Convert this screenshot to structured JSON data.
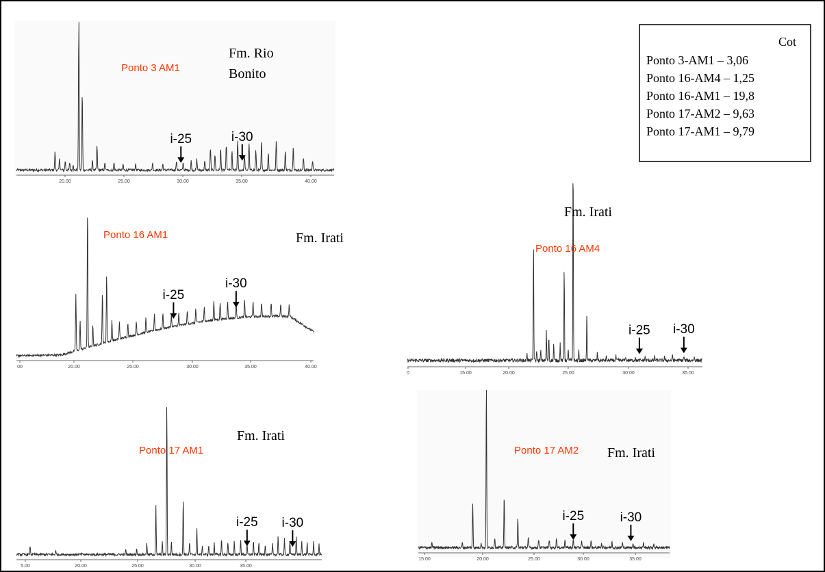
{
  "legend": {
    "title": "Cot",
    "rows": [
      "Ponto 3-AM1  – 3,06",
      "Ponto 16-AM4 – 1,25",
      "Ponto 16-AM1 – 19,8",
      "Ponto 17-AM2 – 9,63",
      "Ponto 17-AM1 – 9,79"
    ]
  },
  "colors": {
    "sample_label": "#ff3300",
    "trace": "#333333",
    "axis": "#666666",
    "text": "#000000"
  },
  "arrow_label_25": "i-25",
  "arrow_label_30": "i-30",
  "chart_data": [
    {
      "type": "line",
      "sample": "Ponto 3 AM1",
      "formation": "Fm. Rio Bonito",
      "formation_lines": [
        "Fm. Rio",
        "Bonito"
      ],
      "xlim": [
        14.5,
        42.5
      ],
      "ylim": [
        0,
        100
      ],
      "ticks": [
        "20.00",
        "25.00",
        "30.00",
        "35.00",
        "40.00"
      ],
      "baseline": "flat",
      "peaks": [
        [
          17.9,
          12
        ],
        [
          18.3,
          8
        ],
        [
          18.8,
          6
        ],
        [
          19.2,
          5
        ],
        [
          19.5,
          4
        ],
        [
          20.0,
          100
        ],
        [
          20.3,
          52
        ],
        [
          21.2,
          6
        ],
        [
          21.6,
          16
        ],
        [
          22.3,
          5
        ],
        [
          23.1,
          5
        ],
        [
          23.9,
          4
        ],
        [
          25.0,
          4
        ],
        [
          26.5,
          5
        ],
        [
          27.4,
          4
        ],
        [
          28.6,
          6
        ],
        [
          29.2,
          5
        ],
        [
          29.9,
          6
        ],
        [
          30.4,
          7
        ],
        [
          31.1,
          6
        ],
        [
          31.6,
          14
        ],
        [
          32.0,
          10
        ],
        [
          32.5,
          14
        ],
        [
          33.0,
          17
        ],
        [
          33.5,
          12
        ],
        [
          34.0,
          19
        ],
        [
          34.6,
          10
        ],
        [
          35.0,
          18
        ],
        [
          35.6,
          13
        ],
        [
          36.1,
          19
        ],
        [
          36.7,
          12
        ],
        [
          37.4,
          19
        ],
        [
          38.2,
          12
        ],
        [
          38.9,
          16
        ],
        [
          39.8,
          8
        ],
        [
          40.6,
          6
        ]
      ],
      "arrows": [
        {
          "x": 29.0,
          "label": "i-25"
        },
        {
          "x": 34.4,
          "label": "i-30"
        }
      ]
    },
    {
      "type": "line",
      "sample": "Ponto 16 AM1",
      "formation": "Fm. Irati",
      "formation_lines": [
        "Fm. Irati"
      ],
      "xlim": [
        13.8,
        41.8
      ],
      "ylim": [
        0,
        100
      ],
      "ticks": [
        "00",
        "20.00",
        "25.00",
        "30.00",
        "35.00",
        "40.00"
      ],
      "baseline": "hump",
      "peaks": [
        [
          19.4,
          40
        ],
        [
          19.8,
          20
        ],
        [
          20.5,
          100
        ],
        [
          21.0,
          15
        ],
        [
          21.9,
          36
        ],
        [
          22.3,
          48
        ],
        [
          22.8,
          15
        ],
        [
          23.5,
          12
        ],
        [
          24.3,
          10
        ],
        [
          25.1,
          9
        ],
        [
          26.0,
          10
        ],
        [
          26.8,
          12
        ],
        [
          27.6,
          11
        ],
        [
          28.4,
          9
        ],
        [
          29.1,
          9
        ],
        [
          29.9,
          10
        ],
        [
          30.7,
          10
        ],
        [
          31.5,
          11
        ],
        [
          32.4,
          14
        ],
        [
          33.0,
          12
        ],
        [
          33.7,
          12
        ],
        [
          34.5,
          14
        ],
        [
          35.3,
          12
        ],
        [
          36.1,
          11
        ],
        [
          36.9,
          10
        ],
        [
          37.8,
          10
        ],
        [
          38.7,
          9
        ],
        [
          39.5,
          8
        ]
      ],
      "arrows": [
        {
          "x": 28.6,
          "label": "i-25"
        },
        {
          "x": 34.5,
          "label": "i-30"
        }
      ]
    },
    {
      "type": "line",
      "sample": "Ponto 16 AM4",
      "formation": "Fm. Irati",
      "formation_lines": [
        "Fm. Irati"
      ],
      "xlim": [
        0,
        36.5
      ],
      "ylim": [
        0,
        100
      ],
      "ticks": [
        "0",
        "15.00",
        "20.00",
        "25.00",
        "30.00",
        "35.00"
      ],
      "baseline": "flat",
      "peaks": [
        [
          14.8,
          4
        ],
        [
          15.6,
          57
        ],
        [
          16.0,
          5
        ],
        [
          16.5,
          5
        ],
        [
          17.2,
          14
        ],
        [
          17.5,
          12
        ],
        [
          18.1,
          8
        ],
        [
          18.9,
          8
        ],
        [
          19.4,
          46
        ],
        [
          19.9,
          6
        ],
        [
          20.5,
          100
        ],
        [
          21.2,
          5
        ],
        [
          22.2,
          24
        ],
        [
          23.5,
          4
        ],
        [
          24.6,
          2
        ],
        [
          25.8,
          2
        ],
        [
          27.0,
          2
        ],
        [
          28.2,
          2
        ],
        [
          29.4,
          2
        ],
        [
          30.6,
          2
        ],
        [
          31.8,
          2
        ],
        [
          32.8,
          3
        ],
        [
          34.2,
          2
        ],
        [
          35.5,
          2
        ]
      ],
      "arrows": [
        {
          "x": 28.7,
          "label": "i-25"
        },
        {
          "x": 34.2,
          "label": "i-30"
        }
      ]
    },
    {
      "type": "line",
      "sample": "Ponto 17 AM1",
      "formation": "Fm. Irati",
      "formation_lines": [
        "Fm. Irati"
      ],
      "xlim": [
        4.0,
        37.5
      ],
      "ylim": [
        0,
        100
      ],
      "ticks": [
        "5.00",
        "20.00",
        "25.00",
        "30.00",
        "35.00"
      ],
      "baseline": "flat",
      "peaks": [
        [
          5.5,
          6
        ],
        [
          8.3,
          3
        ],
        [
          16.0,
          3
        ],
        [
          17.2,
          4
        ],
        [
          18.3,
          8
        ],
        [
          19.3,
          31
        ],
        [
          20.0,
          8
        ],
        [
          20.5,
          100
        ],
        [
          21.0,
          8
        ],
        [
          22.3,
          37
        ],
        [
          23.0,
          8
        ],
        [
          23.8,
          17
        ],
        [
          24.4,
          6
        ],
        [
          25.1,
          6
        ],
        [
          25.7,
          8
        ],
        [
          26.5,
          10
        ],
        [
          27.2,
          8
        ],
        [
          27.9,
          9
        ],
        [
          28.6,
          10
        ],
        [
          29.3,
          7
        ],
        [
          30.0,
          9
        ],
        [
          30.6,
          8
        ],
        [
          31.3,
          7
        ],
        [
          32.1,
          7
        ],
        [
          32.7,
          12
        ],
        [
          33.4,
          10
        ],
        [
          34.0,
          9
        ],
        [
          34.7,
          12
        ],
        [
          35.3,
          9
        ],
        [
          35.9,
          8
        ],
        [
          36.6,
          8
        ],
        [
          37.2,
          7
        ]
      ],
      "arrows": [
        {
          "x": 29.3,
          "label": "i-25"
        },
        {
          "x": 34.3,
          "label": "i-30"
        }
      ]
    },
    {
      "type": "line",
      "sample": "Ponto 17 AM2",
      "formation": "Fm. Irati",
      "formation_lines": [
        "Fm. Irati"
      ],
      "xlim": [
        14.0,
        38.0
      ],
      "ylim": [
        0,
        100
      ],
      "ticks": [
        "15.00",
        "20.00",
        "25.00",
        "30.00",
        "35.00"
      ],
      "baseline": "flat",
      "peaks": [
        [
          15.3,
          3
        ],
        [
          18.2,
          3
        ],
        [
          19.2,
          27
        ],
        [
          20.0,
          3
        ],
        [
          20.5,
          100
        ],
        [
          21.3,
          6
        ],
        [
          22.2,
          32
        ],
        [
          23.5,
          18
        ],
        [
          24.5,
          6
        ],
        [
          25.5,
          5
        ],
        [
          26.5,
          5
        ],
        [
          27.2,
          6
        ],
        [
          28.0,
          5
        ],
        [
          28.8,
          5
        ],
        [
          29.6,
          4
        ],
        [
          30.5,
          4
        ],
        [
          31.5,
          3
        ],
        [
          32.5,
          4
        ],
        [
          33.5,
          3
        ],
        [
          34.5,
          3
        ],
        [
          35.5,
          3
        ],
        [
          36.5,
          2
        ]
      ],
      "arrows": [
        {
          "x": 28.8,
          "label": "i-25"
        },
        {
          "x": 34.3,
          "label": "i-30"
        }
      ]
    }
  ]
}
